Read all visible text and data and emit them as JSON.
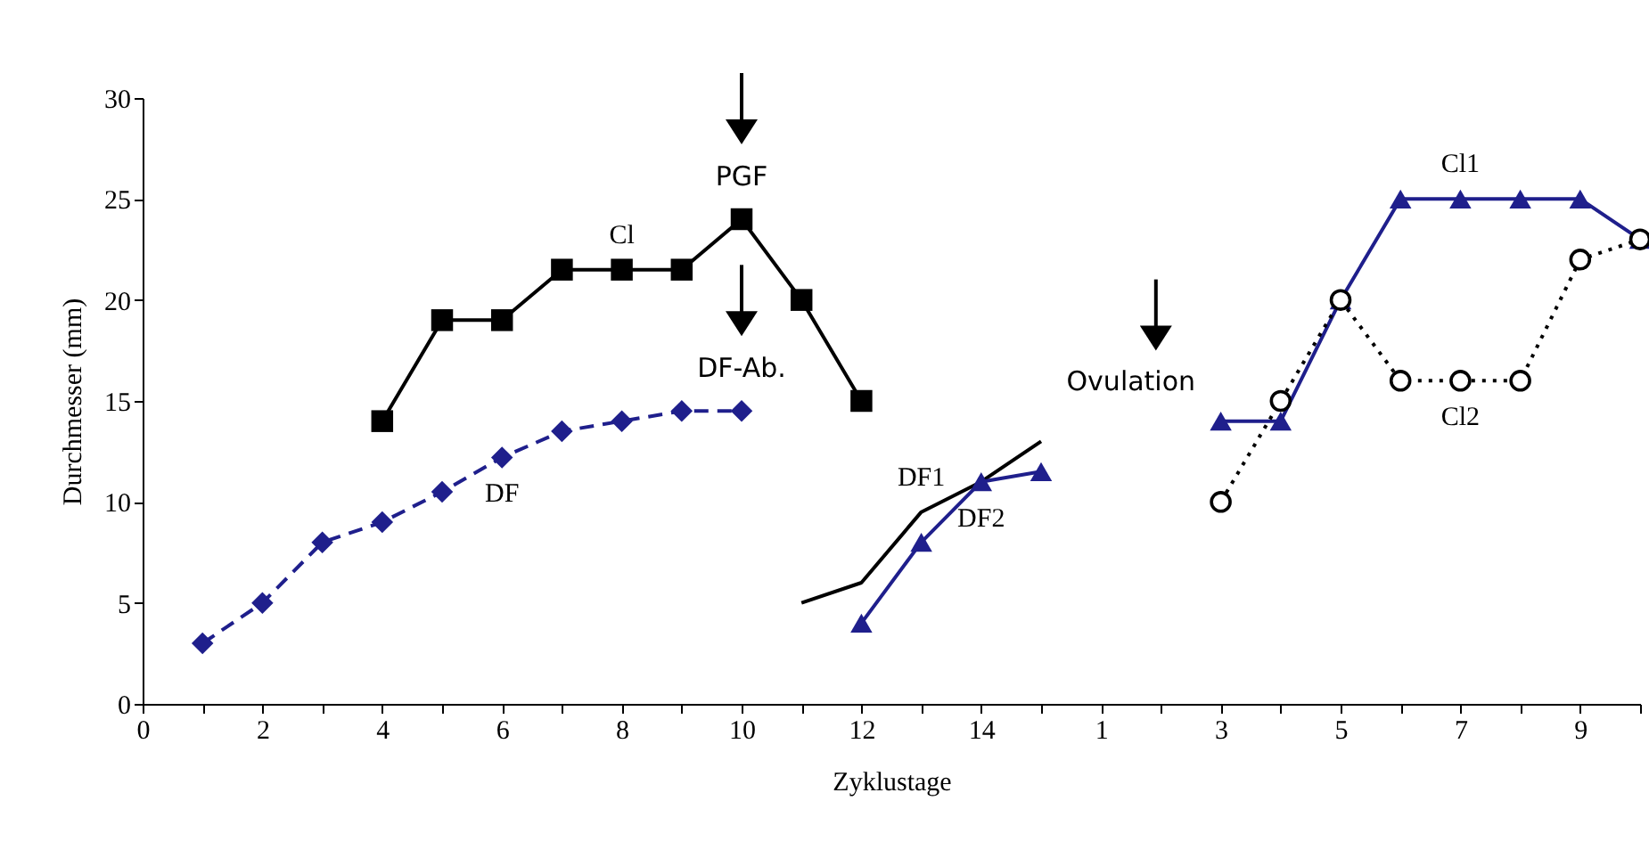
{
  "chart_data": {
    "type": "line",
    "xlabel": "Zyklustage",
    "ylabel": "Durchmesser (mm)",
    "categories": [
      "0",
      null,
      "2",
      null,
      "4",
      null,
      "6",
      null,
      "8",
      null,
      "10",
      null,
      "12",
      null,
      "14",
      null,
      "1",
      null,
      "3",
      null,
      "5",
      null,
      "7",
      null,
      "9",
      null
    ],
    "ylim": [
      0,
      30
    ],
    "yticks": [
      0,
      5,
      10,
      15,
      20,
      25,
      30
    ],
    "grid": false,
    "series": [
      {
        "name": "DF",
        "color": "#1f1f8c",
        "marker": "diamond",
        "line_style": "dashed",
        "values": [
          null,
          3,
          5,
          8,
          9,
          10.5,
          12.2,
          13.5,
          14,
          14.5,
          14.5,
          null,
          null,
          null,
          null,
          null,
          null,
          null,
          null,
          null,
          null,
          null,
          null,
          null,
          null,
          null
        ]
      },
      {
        "name": "Cl",
        "color": "#000000",
        "marker": "square",
        "line_style": "solid",
        "values": [
          null,
          null,
          null,
          null,
          14,
          19,
          19,
          21.5,
          21.5,
          21.5,
          24,
          20,
          15,
          null,
          null,
          null,
          null,
          null,
          null,
          null,
          null,
          null,
          null,
          null,
          null,
          null
        ]
      },
      {
        "name": "DF1",
        "color": "#000000",
        "marker": "none",
        "line_style": "solid",
        "values": [
          null,
          null,
          null,
          null,
          null,
          null,
          null,
          null,
          null,
          null,
          null,
          5,
          6,
          9.5,
          11,
          13,
          null,
          null,
          null,
          null,
          null,
          null,
          null,
          null,
          null,
          null
        ]
      },
      {
        "name": "DF2",
        "color": "#1f1f8c",
        "marker": "triangle",
        "line_style": "solid",
        "values": [
          null,
          null,
          null,
          null,
          null,
          null,
          null,
          null,
          null,
          null,
          null,
          null,
          4,
          8,
          11,
          11.5,
          null,
          null,
          null,
          null,
          null,
          null,
          null,
          null,
          null,
          null
        ]
      },
      {
        "name": "Cl1",
        "color": "#1f1f8c",
        "marker": "triangle",
        "line_style": "solid",
        "values": [
          null,
          null,
          null,
          null,
          null,
          null,
          null,
          null,
          null,
          null,
          null,
          null,
          null,
          null,
          null,
          null,
          null,
          null,
          14,
          14,
          20,
          25,
          25,
          25,
          25,
          23
        ]
      },
      {
        "name": "Cl2",
        "color": "#000000",
        "marker": "circle",
        "line_style": "dotted",
        "values": [
          null,
          null,
          null,
          null,
          null,
          null,
          null,
          null,
          null,
          null,
          null,
          null,
          null,
          null,
          null,
          null,
          null,
          null,
          10,
          15,
          20,
          16,
          16,
          16,
          22,
          23
        ]
      }
    ],
    "annotations": [
      {
        "text": "PGF",
        "x": "10",
        "y": 24
      },
      {
        "text": "DF-Ab.",
        "x": "10",
        "y": 14.5
      },
      "Ovulation"
    ]
  }
}
